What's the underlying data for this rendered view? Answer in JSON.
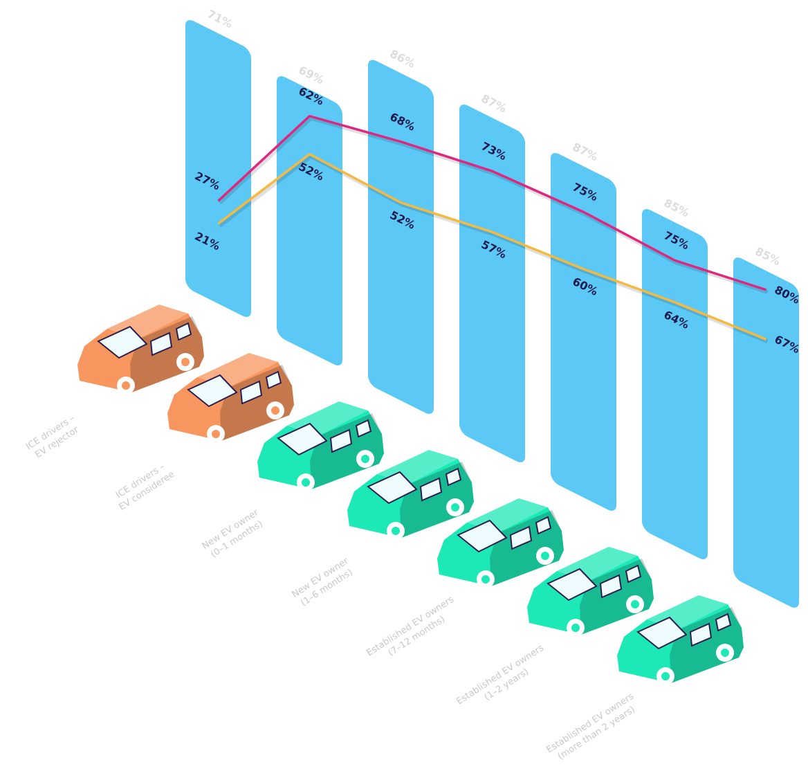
{
  "chart_data": {
    "type": "bar",
    "categories": [
      [
        "ICE drivers –",
        "EV rejector"
      ],
      [
        "ICE drivers –",
        "EV consideree"
      ],
      [
        "New EV owner",
        "(0–1 months)"
      ],
      [
        "New EV owner",
        "(1–6 months)"
      ],
      [
        "Established EV owners",
        "(7–12 months)"
      ],
      [
        "Established EV owners",
        "(1–2 years)"
      ],
      [
        "Established EV owners",
        "(more than 2 years)"
      ]
    ],
    "car_colors": [
      "#f7965e",
      "#f7965e",
      "#1de9b6",
      "#1de9b6",
      "#1de9b6",
      "#1de9b6",
      "#1de9b6"
    ],
    "series": [
      {
        "type": "bar",
        "color": "#5bc8f5",
        "values": [
          71,
          69,
          86,
          87,
          87,
          85,
          85
        ],
        "value_labels": [
          "71%",
          "69%",
          "86%",
          "87%",
          "87%",
          "85%",
          "85%"
        ]
      },
      {
        "type": "line",
        "color": "#e0267f",
        "values": [
          27,
          62,
          68,
          73,
          75,
          75,
          80
        ],
        "value_labels": [
          "27%",
          "62%",
          "68%",
          "73%",
          "75%",
          "75%",
          "80%"
        ]
      },
      {
        "type": "line",
        "color": "#f5b942",
        "values": [
          21,
          52,
          52,
          57,
          60,
          64,
          67
        ],
        "value_labels": [
          "21%",
          "52%",
          "52%",
          "57%",
          "60%",
          "64%",
          "67%"
        ]
      }
    ]
  }
}
